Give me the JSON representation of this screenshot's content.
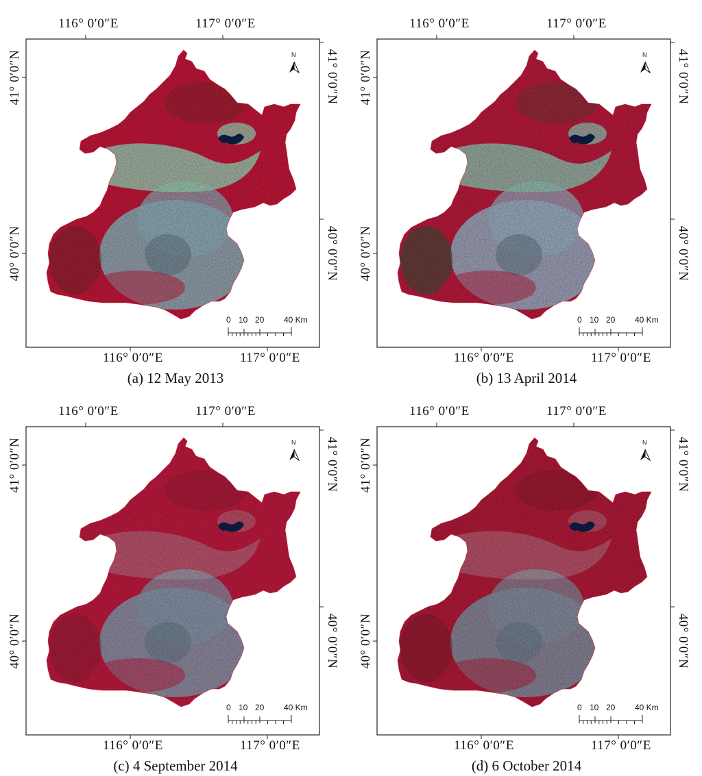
{
  "panels": [
    {
      "caption": "(a) 12 May 2013",
      "variant": "a",
      "top_lon": [
        "116°  0′0″E",
        "117°  0′0″E"
      ],
      "bottom_lon": [
        "116°  0′0″E",
        "117°  0′0″E"
      ],
      "left_lat": [
        "41°  0′0″N",
        "40°  0′0″N"
      ],
      "right_lat": [
        "41°  0′0″N",
        "40°  0′0″N"
      ],
      "colors": {
        "veg": "#c8173a",
        "urban": "#8fb3bd",
        "bare": "#9fd4b8",
        "water": "#0b1a3a",
        "dark": "#6d2a2a"
      }
    },
    {
      "caption": "(b) 13 April 2014",
      "variant": "b",
      "top_lon": [
        "116°  0′0″E",
        "117°  0′0″E"
      ],
      "bottom_lon": [
        "116°  0′0″E",
        "117°  0′0″E"
      ],
      "left_lat": [
        "41°  0′0″N",
        "40°  0′0″N"
      ],
      "right_lat": [
        "41°  0′0″N",
        "40°  0′0″N"
      ],
      "colors": {
        "veg": "#c01a3d",
        "urban": "#9cb4c8",
        "bare": "#93c8b4",
        "water": "#0b1a3a",
        "dark": "#4d4a3a"
      }
    },
    {
      "caption": "(c) 4 September 2014",
      "variant": "c",
      "top_lon": [
        "116°  0′0″E",
        "117°  0′0″E"
      ],
      "bottom_lon": [
        "116°  0′0″E",
        "117°  0′0″E"
      ],
      "left_lat": [
        "41°  0′0″N",
        "40°  0′0″N"
      ],
      "right_lat": [
        "41°  0′0″N",
        "40°  0′0″N"
      ],
      "colors": {
        "veg": "#c51a40",
        "urban": "#8a9aae",
        "bare": "#b6c6c8",
        "water": "#0b1a3a",
        "dark": "#8c1f33"
      }
    },
    {
      "caption": "(d) 6 October 2014",
      "variant": "d",
      "top_lon": [
        "116°  0′0″E",
        "117°  0′0″E"
      ],
      "bottom_lon": [
        "116°  0′0″E",
        "117°  0′0″E"
      ],
      "left_lat": [
        "41°  0′0″N",
        "40°  0′0″N"
      ],
      "right_lat": [
        "41°  0′0″N",
        "40°  0′0″N"
      ],
      "colors": {
        "veg": "#b81a3a",
        "urban": "#8792a3",
        "bare": "#c2bcc2",
        "water": "#0b1a3a",
        "dark": "#7a1c2c"
      }
    }
  ],
  "scale_bar": {
    "labels": [
      "0",
      "10",
      "20",
      "40 Km"
    ]
  },
  "north_arrow": {
    "label": "N"
  },
  "icons": {
    "north": "north-arrow-icon",
    "scale": "scale-bar-icon"
  }
}
